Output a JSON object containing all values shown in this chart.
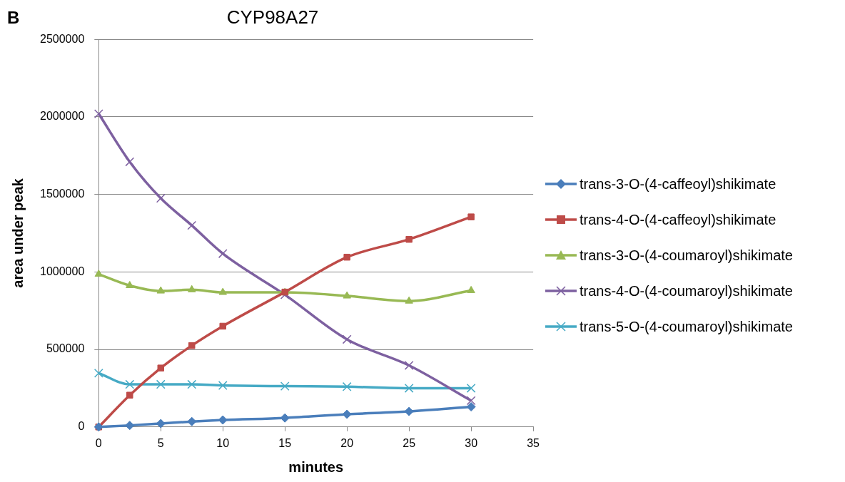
{
  "chart_data": {
    "type": "line",
    "title": "CYP98A27",
    "xlabel": "minutes",
    "ylabel": "area under peak",
    "annotations": [
      "B"
    ],
    "x": [
      0,
      2.5,
      5,
      7.5,
      10,
      15,
      20,
      25,
      30
    ],
    "xlim": [
      0,
      35
    ],
    "xticks": [
      0,
      5,
      10,
      15,
      20,
      25,
      30,
      35
    ],
    "ylim": [
      0,
      2500000
    ],
    "yticks": [
      0,
      500000,
      1000000,
      1500000,
      2000000,
      2500000
    ],
    "grid": "y",
    "legend": "right",
    "series": [
      {
        "name": "trans-3-O-(4-caffeoyl)shikimate",
        "color": "#4a7ebb",
        "marker": "diamond",
        "values": [
          0,
          10000,
          22000,
          35000,
          45000,
          58000,
          82000,
          100000,
          130000
        ]
      },
      {
        "name": "trans-4-O-(4-caffeoyl)shikimate",
        "color": "#be4b48",
        "marker": "square",
        "values": [
          0,
          205000,
          380000,
          525000,
          650000,
          870000,
          1095000,
          1210000,
          1355000
        ]
      },
      {
        "name": "trans-3-O-(4-coumaroyl)shikimate",
        "color": "#98b954",
        "marker": "triangle",
        "values": [
          985000,
          912000,
          877000,
          885000,
          868000,
          868000,
          845000,
          812000,
          880000
        ]
      },
      {
        "name": "trans-4-O-(4-coumaroyl)shikimate",
        "color": "#7d60a0",
        "marker": "cross",
        "values": [
          2020000,
          1710000,
          1475000,
          1300000,
          1118000,
          853000,
          565000,
          397000,
          170000
        ]
      },
      {
        "name": "trans-5-O-(4-coumaroyl)shikimate",
        "color": "#46aac5",
        "marker": "cross",
        "values": [
          347000,
          275000,
          275000,
          275000,
          268000,
          263000,
          260000,
          250000,
          250000
        ]
      }
    ]
  }
}
